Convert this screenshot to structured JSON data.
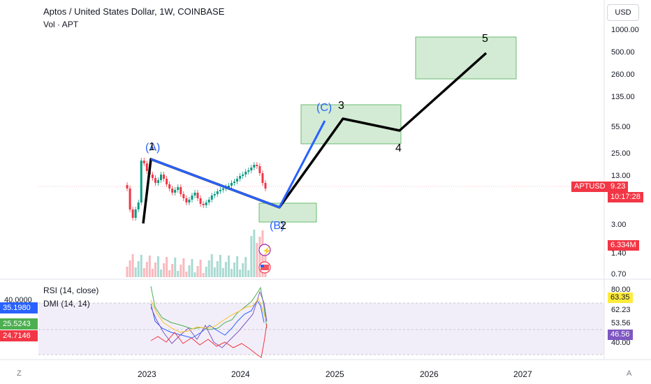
{
  "header": {
    "title": "Aptos / United States Dollar, 1W, COINBASE",
    "volume_label": "Vol · APT",
    "currency_button": "USD"
  },
  "price_axis": {
    "labels": [
      "1000.00",
      "500.00",
      "260.00",
      "135.00",
      "55.00",
      "25.00",
      "13.00",
      "3.00",
      "1.40",
      "0.70"
    ]
  },
  "price_tags": {
    "symbol": "APTUSD",
    "last_price": "9.23",
    "countdown": "10:17:28",
    "volume": "6.334M"
  },
  "time_axis": {
    "labels": [
      "2023",
      "2024",
      "2025",
      "2026",
      "2027"
    ]
  },
  "wave_labels": {
    "wave_a": "(A)",
    "wave_1": "1",
    "wave_b": "(B)",
    "wave_2": "2",
    "wave_c": "(C)",
    "wave_3": "3",
    "wave_4": "4",
    "wave_5": "5"
  },
  "indicators": {
    "rsi_legend": "RSI (14, close)",
    "dmi_legend": "DMI (14, 14)",
    "dmi_axis_top": "40.0000",
    "dmi_values": [
      "35.1980",
      "25.5243",
      "24.7146"
    ],
    "rsi_axis_labels": [
      "80.00",
      "62.23",
      "53.56",
      "40.00"
    ],
    "rsi_tag_upper": "63.35",
    "rsi_tag_lower": "46.56"
  },
  "footer": {
    "left_toggle": "Z",
    "right_toggle": "A"
  },
  "colors": {
    "wave_black": "#000000",
    "wave_blue": "#2962ff",
    "target_box_fill": "#c8e6c9",
    "target_box_border": "#4caf50",
    "candle_up": "#089981",
    "candle_down": "#f23645",
    "price_tag": "#f23645",
    "rsi_band": "#ede7f6",
    "rsi_tag_upper": "#ffeb3b",
    "rsi_tag_lower": "#7e57c2",
    "dmi_blue": "#2962ff",
    "dmi_green": "#4caf50",
    "dmi_red": "#f23645"
  }
}
